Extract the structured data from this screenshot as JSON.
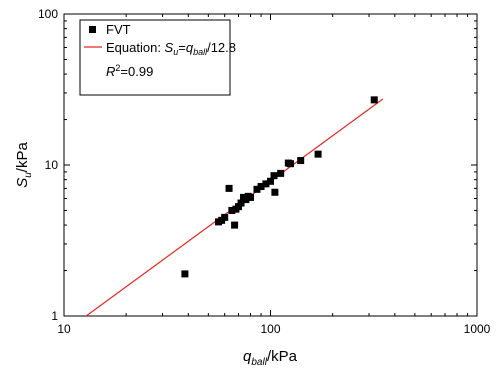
{
  "chart_data": {
    "type": "scatter",
    "x_scale": "log",
    "y_scale": "log",
    "xlim": [
      10,
      1000
    ],
    "ylim": [
      1,
      100
    ],
    "x_ticks": [
      "10",
      "100",
      "1000"
    ],
    "y_ticks": [
      "1",
      "10",
      "100"
    ],
    "xlabel": {
      "main": "q",
      "sub": "ball",
      "rest": "/kPa"
    },
    "ylabel": {
      "main": "S",
      "sub": "u",
      "rest": "/kPa"
    },
    "legend_position": "top-left",
    "series": [
      {
        "name": "FVT",
        "kind": "scatter",
        "color": "#000000",
        "marker": "square",
        "points": [
          [
            38.5,
            1.9
          ],
          [
            56,
            4.2
          ],
          [
            58,
            4.3
          ],
          [
            60,
            4.5
          ],
          [
            63,
            7.0
          ],
          [
            65,
            5.0
          ],
          [
            67,
            4.0
          ],
          [
            68,
            5.1
          ],
          [
            70,
            5.3
          ],
          [
            72,
            5.6
          ],
          [
            74,
            6.1
          ],
          [
            76,
            5.9
          ],
          [
            78,
            6.2
          ],
          [
            80,
            6.1
          ],
          [
            86,
            6.9
          ],
          [
            90,
            7.2
          ],
          [
            95,
            7.5
          ],
          [
            100,
            7.8
          ],
          [
            104,
            8.5
          ],
          [
            105,
            6.6
          ],
          [
            112,
            8.8
          ],
          [
            122,
            10.3
          ],
          [
            125,
            10.2
          ],
          [
            140,
            10.7
          ],
          [
            170,
            11.8
          ],
          [
            318,
            27.0
          ]
        ]
      },
      {
        "name": "Equation",
        "kind": "fit-line",
        "color": "#e8261f",
        "slope_divisor": 12.8,
        "x_range": [
          10,
          350
        ]
      }
    ],
    "legend": {
      "fvt_label": "FVT",
      "equation_prefix": "Equation: ",
      "equation_s": "S",
      "equation_s_sub": "u",
      "equation_eq": "=",
      "equation_q": "q",
      "equation_q_sub": "ball",
      "equation_suffix": "/12.8",
      "r2_r": "R",
      "r2_sup": "2",
      "r2_value": "=0.99"
    }
  }
}
